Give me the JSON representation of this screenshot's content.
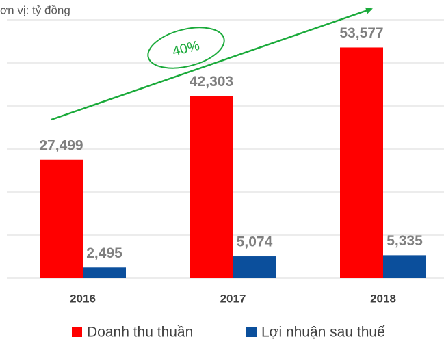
{
  "chart_data": {
    "type": "bar",
    "subtitle": "ơn vị: tỷ đồng",
    "annotation": "40%",
    "categories": [
      "2016",
      "2017",
      "2018"
    ],
    "series": [
      {
        "name": "Doanh thu thuần",
        "color": "#ff0000",
        "values": [
          27499,
          42303,
          53577
        ],
        "value_labels": [
          "27,499",
          "42,303",
          "53,577"
        ]
      },
      {
        "name": "Lợi nhuận sau thuế",
        "color": "#0b4f9c",
        "values": [
          2495,
          5074,
          5335
        ],
        "value_labels": [
          "2,495",
          "5,074",
          "5,335"
        ]
      }
    ],
    "ylim": [
      0,
      60000
    ],
    "yticks": [
      0,
      10000,
      20000,
      30000,
      40000,
      50000,
      60000
    ],
    "grid": true,
    "legend": "bottom"
  }
}
